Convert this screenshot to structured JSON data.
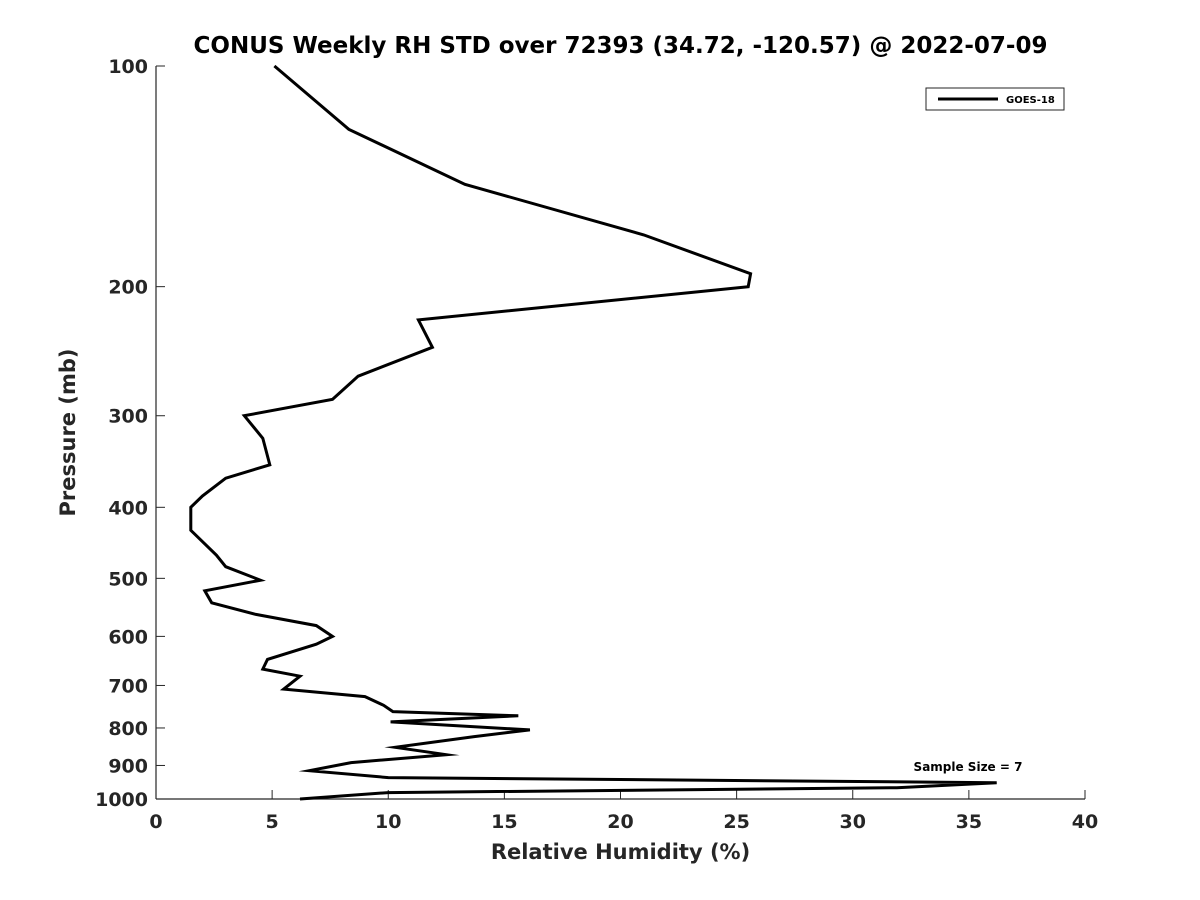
{
  "chart_data": {
    "type": "line",
    "title": "CONUS Weekly RH STD over 72393 (34.72, -120.57) @ 2022-07-09",
    "xlabel": "Relative Humidity (%)",
    "ylabel": "Pressure (mb)",
    "xlim": [
      0,
      40
    ],
    "ylim": [
      100,
      1000
    ],
    "yscale": "log",
    "y_reversed": true,
    "x_ticks": [
      "0",
      "5",
      "10",
      "15",
      "20",
      "25",
      "30",
      "35",
      "40"
    ],
    "y_ticks": [
      "100",
      "200",
      "300",
      "400",
      "500",
      "600",
      "700",
      "800",
      "900",
      "1000"
    ],
    "grid": false,
    "legend_position": "top-right",
    "annotation": "Sample Size = 7",
    "series": [
      {
        "name": "GOES-18",
        "color": "#000000",
        "x": [
          5.1,
          8.3,
          13.3,
          21.0,
          25.6,
          25.5,
          11.3,
          11.9,
          8.7,
          7.6,
          3.8,
          4.6,
          4.9,
          3.0,
          2.0,
          1.5,
          1.5,
          2.6,
          3.0,
          4.5,
          2.1,
          2.4,
          4.3,
          6.9,
          7.6,
          6.9,
          4.8,
          4.6,
          6.2,
          5.5,
          9.0,
          9.8,
          10.2,
          15.6,
          10.1,
          16.1,
          13.7,
          10.3,
          12.5,
          8.4,
          6.6,
          10.0,
          36.2,
          31.9,
          10.0,
          6.2
        ],
        "y": [
          100,
          122,
          145,
          170,
          192,
          200,
          222,
          242,
          265,
          285,
          300,
          322,
          350,
          365,
          386,
          400,
          430,
          465,
          482,
          503,
          520,
          540,
          560,
          580,
          600,
          615,
          645,
          665,
          680,
          708,
          725,
          745,
          760,
          770,
          785,
          805,
          822,
          850,
          870,
          892,
          915,
          935,
          950,
          965,
          980,
          1000
        ]
      }
    ]
  }
}
